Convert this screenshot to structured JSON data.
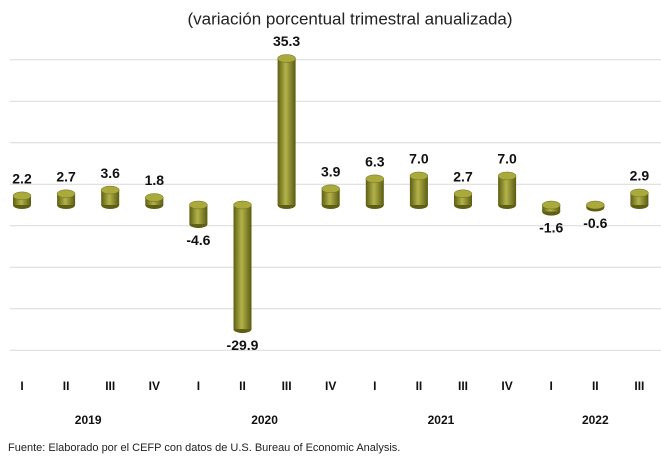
{
  "chart_data": {
    "type": "bar",
    "title": "(variación porcentual trimestral anualizada)",
    "categories": [
      "I",
      "II",
      "III",
      "IV",
      "I",
      "II",
      "III",
      "IV",
      "I",
      "II",
      "III",
      "IV",
      "I",
      "II",
      "III"
    ],
    "years": [
      "2019",
      "2020",
      "2021",
      "2022"
    ],
    "values": [
      2.2,
      2.7,
      3.6,
      1.8,
      -4.6,
      -29.9,
      35.3,
      3.9,
      6.3,
      7.0,
      2.7,
      7.0,
      -1.6,
      -0.6,
      2.9
    ],
    "value_labels": [
      "2.2",
      "2.7",
      "3.6",
      "1.8",
      "-4.6",
      "-29.9",
      "35.3",
      "3.9",
      "6.3",
      "7.0",
      "2.7",
      "7.0",
      "-1.6",
      "-0.6",
      "2.9"
    ],
    "color": "#7d7d22",
    "ylim": [
      -40,
      40
    ],
    "yticks": [
      -35,
      -25,
      -15,
      -5,
      5,
      15,
      25,
      35
    ],
    "grid": true,
    "source": "Fuente: Elaborado por el CEFP con datos de U.S. Bureau of Economic Analysis."
  }
}
